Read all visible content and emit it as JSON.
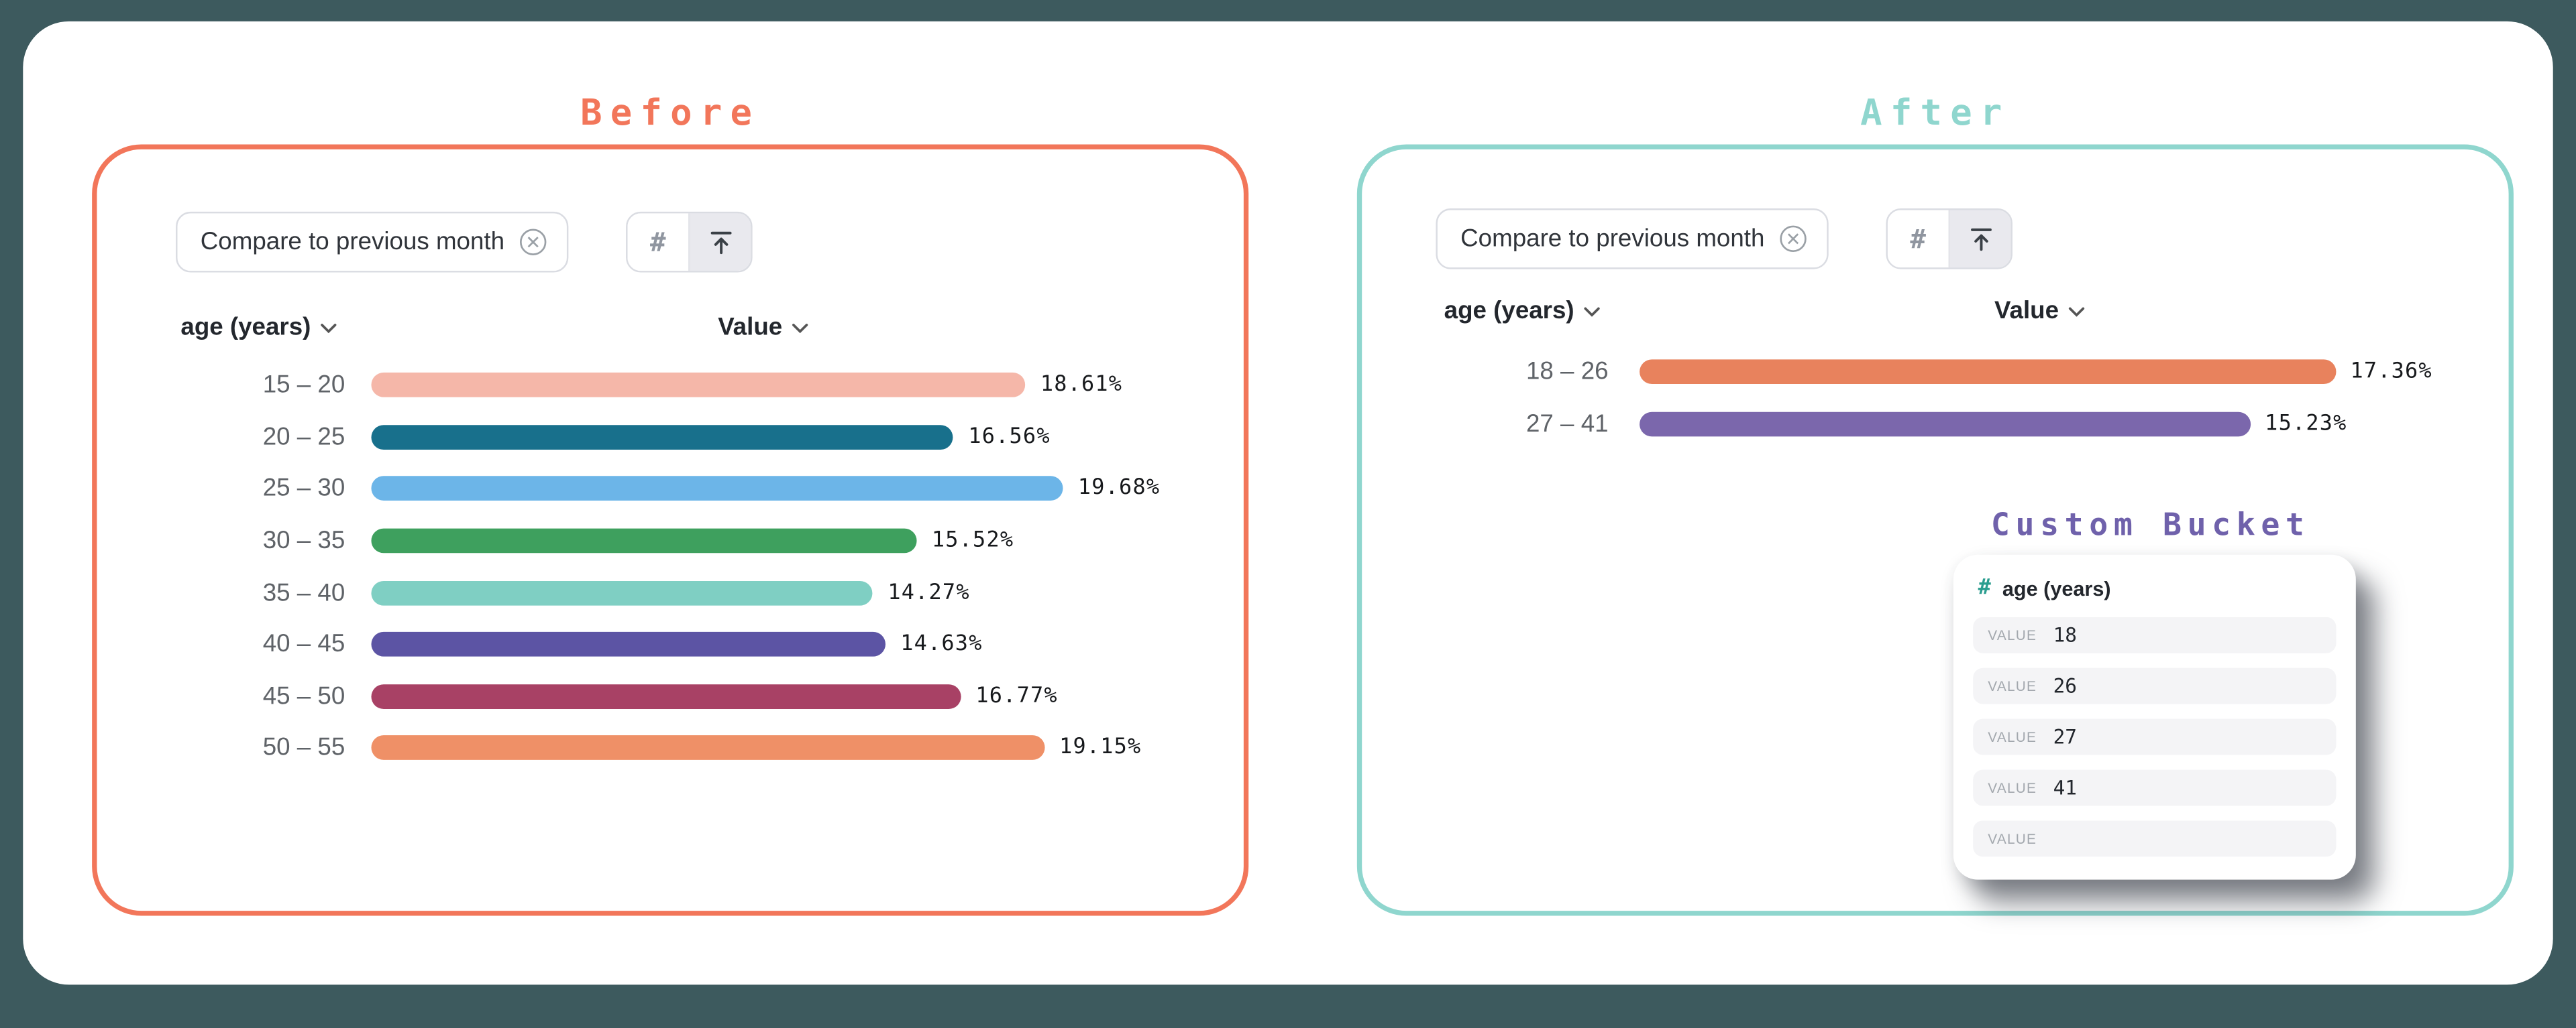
{
  "accents": {
    "before": "#F2765A",
    "after": "#8FD6CE",
    "custom_bucket_title": "#6F61AB",
    "page_bg": "#3D5A5E"
  },
  "titles": {
    "before": "Before",
    "after": "After"
  },
  "filter_chip": {
    "label": "Compare to previous month"
  },
  "columns": {
    "dimension": "age (years)",
    "measure": "Value"
  },
  "icons": {
    "hash": "#",
    "binning": "binning-arrow-up-icon",
    "close": "close-circle-icon",
    "chevron": "chevron-down-icon"
  },
  "chart_data": [
    {
      "name": "before",
      "type": "bar",
      "orientation": "horizontal",
      "value_unit": "%",
      "categories": [
        "15 – 20",
        "20 – 25",
        "25 – 30",
        "30 – 35",
        "35 – 40",
        "40 – 45",
        "45 – 50",
        "50 – 55"
      ],
      "values": [
        18.61,
        16.56,
        19.68,
        15.52,
        14.27,
        14.63,
        16.77,
        19.15
      ],
      "value_labels": [
        "18.61%",
        "16.56%",
        "19.68%",
        "15.52%",
        "14.27%",
        "14.63%",
        "16.77%",
        "19.15%"
      ],
      "colors": [
        "#F5B7A9",
        "#18708C",
        "#6CB5E8",
        "#3EA05E",
        "#7FCFC3",
        "#5C54A4",
        "#A84165",
        "#EF9067"
      ]
    },
    {
      "name": "after",
      "type": "bar",
      "orientation": "horizontal",
      "value_unit": "%",
      "categories": [
        "18 – 26",
        "27 – 41"
      ],
      "values": [
        17.36,
        15.23
      ],
      "value_labels": [
        "17.36%",
        "15.23%"
      ],
      "colors": [
        "#E8825D",
        "#7B67AC"
      ]
    }
  ],
  "custom_bucket": {
    "title": "Custom Bucket",
    "field": "age (years)",
    "row_label": "VALUE",
    "rows": [
      "18",
      "26",
      "27",
      "41",
      ""
    ]
  }
}
